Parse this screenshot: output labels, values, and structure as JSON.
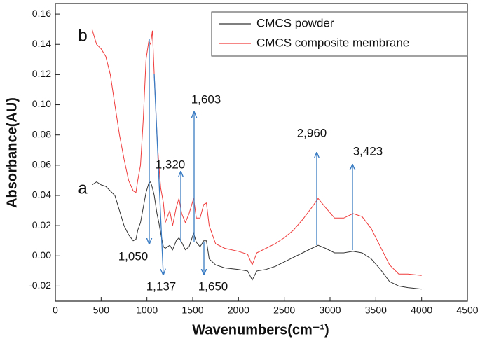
{
  "chart_data": {
    "type": "line",
    "x_label": "Wavenumbers(cm⁻¹)",
    "y_label": "Absorbance(AU)",
    "x": [
      400,
      450,
      500,
      550,
      600,
      650,
      700,
      750,
      800,
      850,
      880,
      900,
      930,
      960,
      990,
      1020,
      1040,
      1060,
      1080,
      1110,
      1130,
      1150,
      1180,
      1200,
      1250,
      1280,
      1320,
      1350,
      1380,
      1420,
      1460,
      1510,
      1540,
      1580,
      1620,
      1650,
      1680,
      1750,
      1850,
      2000,
      2100,
      2150,
      2200,
      2300,
      2400,
      2500,
      2600,
      2700,
      2800,
      2870,
      2950,
      3050,
      3150,
      3250,
      3350,
      3450,
      3550,
      3650,
      3750,
      3850,
      4000
    ],
    "series": [
      {
        "name": "CMCS powder",
        "color": "#333333",
        "values": [
          0.047,
          0.049,
          0.047,
          0.046,
          0.043,
          0.04,
          0.03,
          0.02,
          0.014,
          0.01,
          0.011,
          0.017,
          0.022,
          0.032,
          0.042,
          0.048,
          0.049,
          0.045,
          0.04,
          0.028,
          0.022,
          0.015,
          0.006,
          0.005,
          0.007,
          0.004,
          0.01,
          0.012,
          0.009,
          0.004,
          0.006,
          0.015,
          0.009,
          0.006,
          0.01,
          0.01,
          -0.002,
          -0.006,
          -0.008,
          -0.009,
          -0.01,
          -0.016,
          -0.01,
          -0.009,
          -0.007,
          -0.004,
          -0.001,
          0.002,
          0.005,
          0.007,
          0.005,
          0.002,
          0.002,
          0.003,
          0.002,
          -0.002,
          -0.009,
          -0.017,
          -0.02,
          -0.021,
          -0.022
        ]
      },
      {
        "name": "CMCS composite membrane",
        "color": "#f03c3c",
        "values": [
          0.15,
          0.14,
          0.137,
          0.132,
          0.12,
          0.1,
          0.08,
          0.064,
          0.05,
          0.043,
          0.042,
          0.05,
          0.06,
          0.09,
          0.13,
          0.142,
          0.14,
          0.149,
          0.12,
          0.08,
          0.06,
          0.045,
          0.035,
          0.022,
          0.03,
          0.02,
          0.032,
          0.038,
          0.028,
          0.022,
          0.028,
          0.038,
          0.025,
          0.025,
          0.034,
          0.035,
          0.02,
          0.008,
          0.005,
          0.003,
          0.001,
          -0.006,
          0.002,
          0.005,
          0.008,
          0.012,
          0.017,
          0.024,
          0.032,
          0.038,
          0.032,
          0.025,
          0.025,
          0.028,
          0.026,
          0.018,
          0.006,
          -0.006,
          -0.012,
          -0.012,
          -0.013
        ]
      }
    ],
    "xlim": [
      0,
      4500
    ],
    "xticks": [
      0,
      500,
      1000,
      1500,
      2000,
      2500,
      3000,
      3500,
      4000,
      4500
    ],
    "ylim": [
      -0.03,
      0.167
    ],
    "yticks": [
      {
        "value": -0.02,
        "label": "-0.02"
      },
      {
        "value": 0,
        "label": "0.00"
      },
      {
        "value": 0.02,
        "label": "0.02"
      },
      {
        "value": 0.04,
        "label": "0.04"
      },
      {
        "value": 0.06,
        "label": "0.06"
      },
      {
        "value": 0.08,
        "label": "0.08"
      },
      {
        "value": 0.1,
        "label": "0.10"
      },
      {
        "value": 0.12,
        "label": "0.12"
      },
      {
        "value": 0.14,
        "label": "0.14"
      },
      {
        "value": 0.16,
        "label": "0.16"
      }
    ],
    "legend": "upper right",
    "annotations": [
      "b",
      "a",
      "1,050",
      "1,137",
      "1,320",
      "1,603",
      "1,650",
      "2,960",
      "3,423"
    ]
  }
}
